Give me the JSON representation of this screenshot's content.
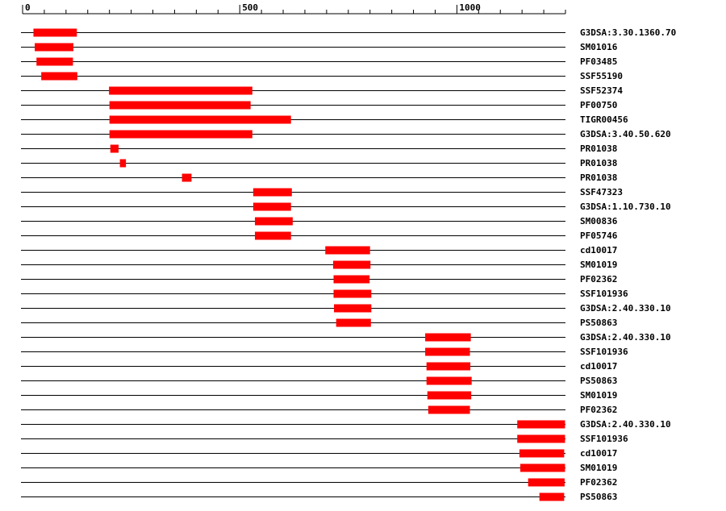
{
  "colors": {
    "feature": "#ff0000",
    "line": "#000000",
    "background": "#ffffff"
  },
  "axis": {
    "min": 0,
    "max": 1250,
    "labeled_ticks": [
      {
        "value": 0,
        "label": "0"
      },
      {
        "value": 500,
        "label": "500"
      },
      {
        "value": 1000,
        "label": "1000"
      }
    ],
    "minor_tick_interval": 50
  },
  "chart_data": {
    "type": "bar",
    "orientation": "horizontal-ranges",
    "tracks": [
      {
        "label": "G3DSA:3.30.1360.70",
        "start": 25,
        "end": 125
      },
      {
        "label": "SM01016",
        "start": 28,
        "end": 117
      },
      {
        "label": "PF03485",
        "start": 32,
        "end": 116
      },
      {
        "label": "SSF55190",
        "start": 43,
        "end": 126
      },
      {
        "label": "SSF52374",
        "start": 199,
        "end": 529
      },
      {
        "label": "PF00750",
        "start": 200,
        "end": 525
      },
      {
        "label": "TIGR00456",
        "start": 200,
        "end": 618
      },
      {
        "label": "G3DSA:3.40.50.620",
        "start": 200,
        "end": 529
      },
      {
        "label": "PR01038",
        "start": 202,
        "end": 221
      },
      {
        "label": "PR01038",
        "start": 224,
        "end": 238
      },
      {
        "label": "PR01038",
        "start": 367,
        "end": 389
      },
      {
        "label": "SSF47323",
        "start": 531,
        "end": 620
      },
      {
        "label": "G3DSA:1.10.730.10",
        "start": 531,
        "end": 618
      },
      {
        "label": "SM00836",
        "start": 535,
        "end": 622
      },
      {
        "label": "PF05746",
        "start": 535,
        "end": 618
      },
      {
        "label": "cd10017",
        "start": 697,
        "end": 800
      },
      {
        "label": "SM01019",
        "start": 715,
        "end": 801
      },
      {
        "label": "PF02362",
        "start": 716,
        "end": 799
      },
      {
        "label": "SSF101936",
        "start": 716,
        "end": 803
      },
      {
        "label": "G3DSA:2.40.330.10",
        "start": 717,
        "end": 803
      },
      {
        "label": "PS50863",
        "start": 722,
        "end": 802
      },
      {
        "label": "G3DSA:2.40.330.10",
        "start": 927,
        "end": 1032
      },
      {
        "label": "SSF101936",
        "start": 927,
        "end": 1030
      },
      {
        "label": "cd10017",
        "start": 930,
        "end": 1031
      },
      {
        "label": "PS50863",
        "start": 930,
        "end": 1034
      },
      {
        "label": "SM01019",
        "start": 932,
        "end": 1033
      },
      {
        "label": "PF02362",
        "start": 934,
        "end": 1030
      },
      {
        "label": "G3DSA:2.40.330.10",
        "start": 1139,
        "end": 1249
      },
      {
        "label": "SSF101936",
        "start": 1139,
        "end": 1249
      },
      {
        "label": "cd10017",
        "start": 1144,
        "end": 1247
      },
      {
        "label": "SM01019",
        "start": 1146,
        "end": 1249
      },
      {
        "label": "PF02362",
        "start": 1164,
        "end": 1248
      },
      {
        "label": "PS50863",
        "start": 1190,
        "end": 1247
      }
    ]
  }
}
